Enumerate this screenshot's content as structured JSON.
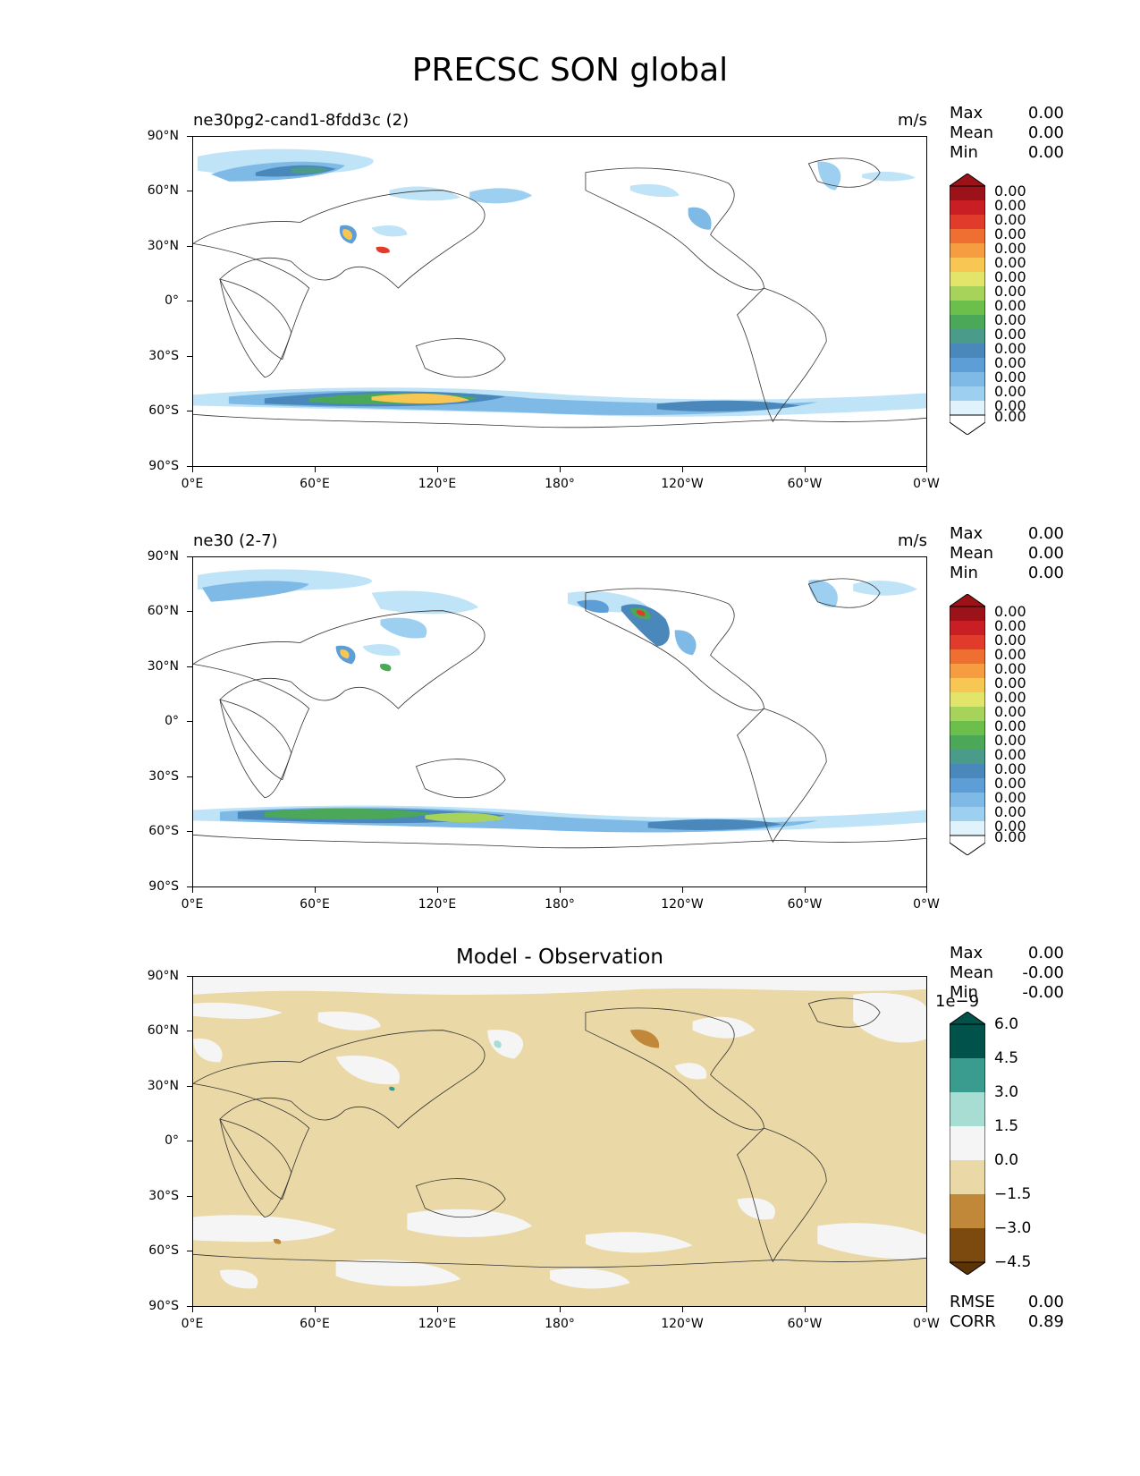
{
  "figure": {
    "title": "PRECSC SON global"
  },
  "axes": {
    "y_ticks": [
      "90°N",
      "60°N",
      "30°N",
      "0°",
      "30°S",
      "60°S",
      "90°S"
    ],
    "x_ticks": [
      "0°E",
      "60°E",
      "120°E",
      "180°",
      "120°W",
      "60°W",
      "0°W"
    ]
  },
  "panels": [
    {
      "id": "test",
      "left_title": "ne30pg2-cand1-8fdd3c (2)",
      "right_title": "m/s",
      "stats": {
        "max_label": "Max",
        "max": "0.00",
        "mean_label": "Mean",
        "mean": "0.00",
        "min_label": "Min",
        "min": "0.00"
      },
      "colorbar": {
        "labels": [
          "0.00",
          "0.00",
          "0.00",
          "0.00",
          "0.00",
          "0.00",
          "0.00",
          "0.00",
          "0.00",
          "0.00",
          "0.00",
          "0.00",
          "0.00",
          "0.00",
          "0.00",
          "0.00",
          "0.00"
        ],
        "colors": [
          "#ffffff",
          "#e0f3fc",
          "#bfe3f7",
          "#9dd0f0",
          "#7fb9e6",
          "#5e9ed6",
          "#4a87bb",
          "#4a9b8a",
          "#4ba858",
          "#6cbf4a",
          "#a8d35a",
          "#e3e46a",
          "#f7c653",
          "#f59d40",
          "#ef6f33",
          "#e03b2b",
          "#c81e24",
          "#9b1318"
        ]
      }
    },
    {
      "id": "reference",
      "left_title": "ne30 (2-7)",
      "right_title": "m/s",
      "stats": {
        "max_label": "Max",
        "max": "0.00",
        "mean_label": "Mean",
        "mean": "0.00",
        "min_label": "Min",
        "min": "0.00"
      },
      "colorbar": {
        "labels": [
          "0.00",
          "0.00",
          "0.00",
          "0.00",
          "0.00",
          "0.00",
          "0.00",
          "0.00",
          "0.00",
          "0.00",
          "0.00",
          "0.00",
          "0.00",
          "0.00",
          "0.00",
          "0.00",
          "0.00"
        ],
        "colors": [
          "#ffffff",
          "#e0f3fc",
          "#bfe3f7",
          "#9dd0f0",
          "#7fb9e6",
          "#5e9ed6",
          "#4a87bb",
          "#4a9b8a",
          "#4ba858",
          "#6cbf4a",
          "#a8d35a",
          "#e3e46a",
          "#f7c653",
          "#f59d40",
          "#ef6f33",
          "#e03b2b",
          "#c81e24",
          "#9b1318"
        ]
      }
    },
    {
      "id": "difference",
      "center_title": "Model - Observation",
      "stats": {
        "max_label": "Max",
        "max": "0.00",
        "mean_label": "Mean",
        "mean": "-0.00",
        "min_label": "Min",
        "min": "-0.00"
      },
      "colorbar": {
        "scale_label": "1e−9",
        "labels": [
          "6.0",
          "4.5",
          "3.0",
          "1.5",
          "0.0",
          "−1.5",
          "−3.0",
          "−4.5"
        ],
        "colors": [
          "#00524a",
          "#3a9b8f",
          "#a7ddd3",
          "#f4f5f4",
          "#ead8a6",
          "#c08838",
          "#7c4a0e",
          "#5a3306"
        ]
      },
      "metrics": {
        "rmse_label": "RMSE",
        "rmse": "0.00",
        "corr_label": "CORR",
        "corr": "0.89"
      }
    }
  ]
}
